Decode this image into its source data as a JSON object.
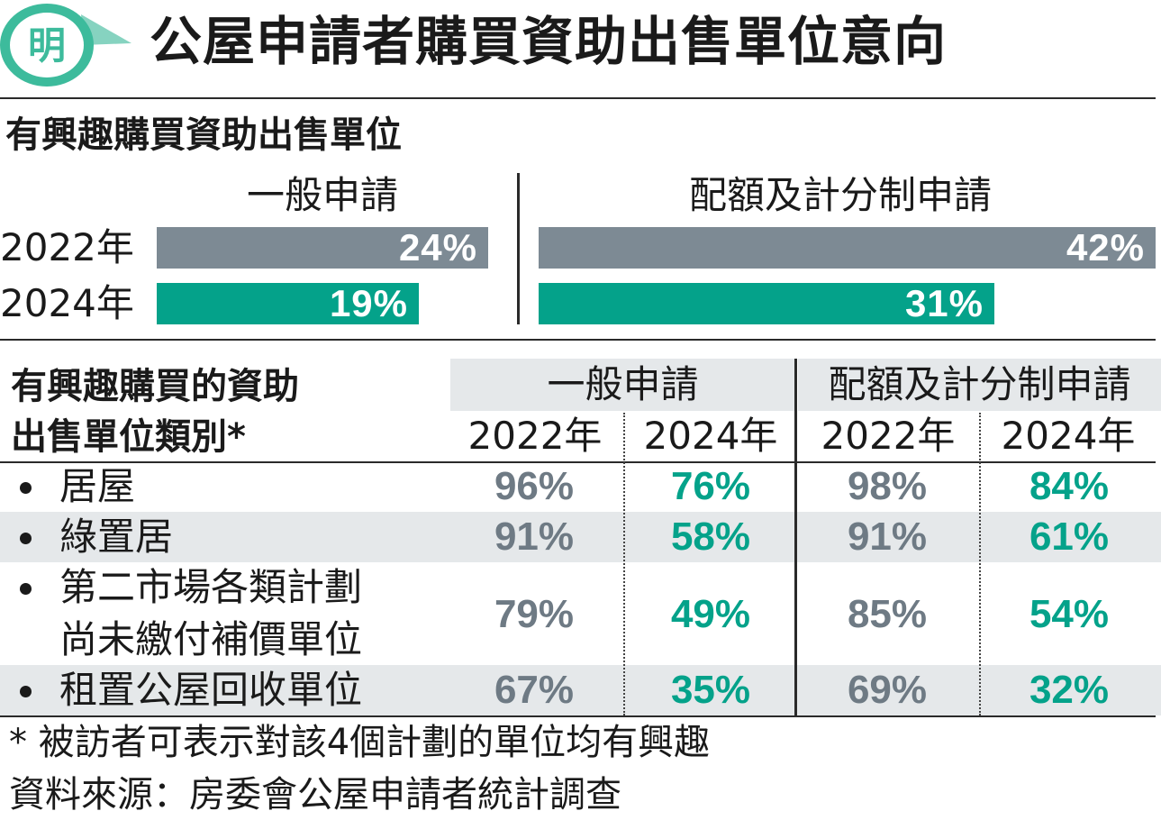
{
  "logo": {
    "character": "明"
  },
  "headline": "公屋申請者購買資助出售單位意向",
  "colors": {
    "y2022": "#7d8a94",
    "y2024": "#04a28a",
    "brand": "#3dbb9c",
    "row_shade": "#e5e8ea"
  },
  "section1": {
    "title": "有興趣購買資助出售單位",
    "groups": [
      {
        "label": "一般申請",
        "rows": [
          {
            "year": "2022年",
            "value": 24,
            "text": "24%"
          },
          {
            "year": "2024年",
            "value": 19,
            "text": "19%"
          }
        ]
      },
      {
        "label": "配額及計分制申請",
        "rows": [
          {
            "year": "2022年",
            "value": 42,
            "text": "42%"
          },
          {
            "year": "2024年",
            "value": 31,
            "text": "31%"
          }
        ]
      }
    ],
    "years": [
      "2022年",
      "2024年"
    ]
  },
  "section2": {
    "title_line1": "有興趣購買的資助",
    "title_line2": "出售單位類別*",
    "group_headers": [
      "一般申請",
      "配額及計分制申請"
    ],
    "year_headers": [
      "2022年",
      "2024年",
      "2022年",
      "2024年"
    ],
    "rows": [
      {
        "label": [
          "居屋"
        ],
        "values": [
          "96%",
          "76%",
          "98%",
          "84%"
        ]
      },
      {
        "label": [
          "綠置居"
        ],
        "values": [
          "91%",
          "58%",
          "91%",
          "61%"
        ]
      },
      {
        "label": [
          "第二市場各類計劃",
          "尚未繳付補價單位"
        ],
        "values": [
          "79%",
          "49%",
          "85%",
          "54%"
        ]
      },
      {
        "label": [
          "租置公屋回收單位"
        ],
        "values": [
          "67%",
          "35%",
          "69%",
          "32%"
        ]
      }
    ]
  },
  "chart_data": [
    {
      "type": "bar",
      "title": "有興趣購買資助出售單位",
      "categories": [
        "一般申請",
        "配額及計分制申請"
      ],
      "series": [
        {
          "name": "2022年",
          "values": [
            24,
            42
          ]
        },
        {
          "name": "2024年",
          "values": [
            19,
            31
          ]
        }
      ]
    },
    {
      "type": "table",
      "columns": [
        "有興趣購買的資助出售單位類別*",
        "一般申請 2022年",
        "一般申請 2024年",
        "配額及計分制申請 2022年",
        "配額及計分制申請 2024年"
      ],
      "rows": [
        [
          "居屋",
          96,
          76,
          98,
          84
        ],
        [
          "綠置居",
          91,
          58,
          91,
          61
        ],
        [
          "第二市場各類計劃尚未繳付補價單位",
          79,
          49,
          85,
          54
        ],
        [
          "租置公屋回收單位",
          67,
          35,
          69,
          32
        ]
      ]
    }
  ],
  "footnotes": {
    "note": "* 被訪者可表示對該4個計劃的單位均有興趣",
    "source": "資料來源：房委會公屋申請者統計調查"
  }
}
